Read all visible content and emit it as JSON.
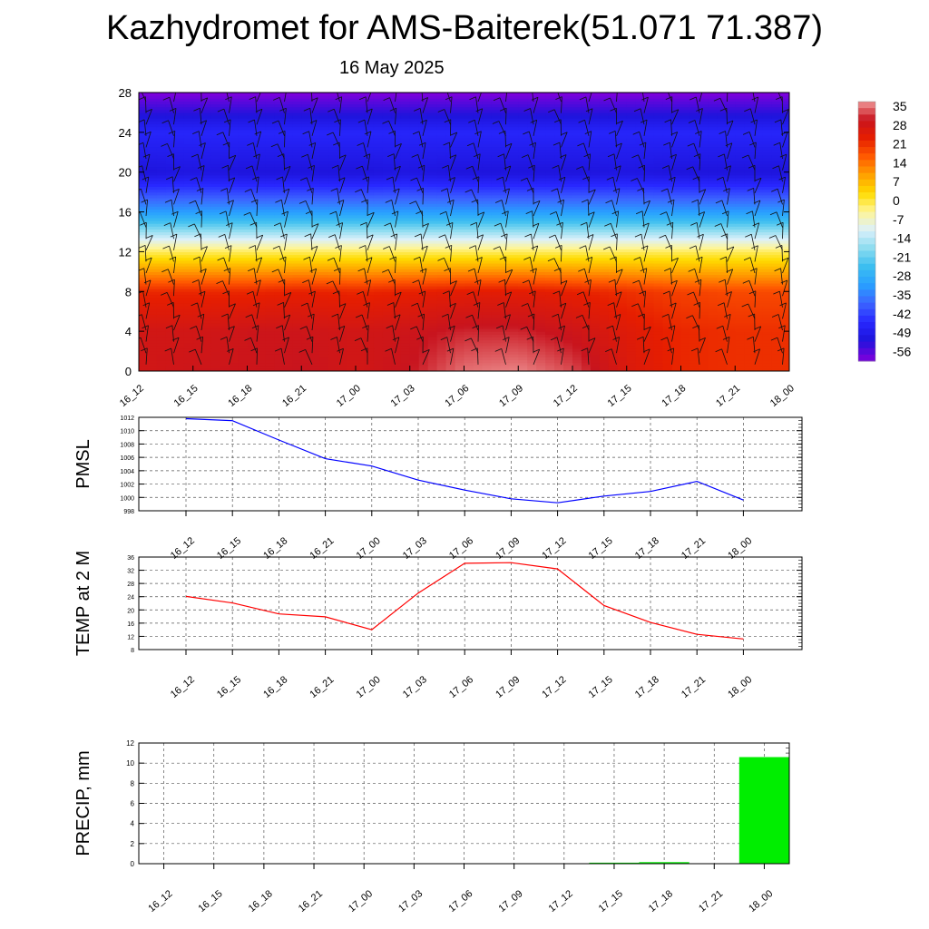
{
  "title": "Kazhydromet for AMS-Baiterek(51.071 71.387)",
  "subtitle": "16 May 2025",
  "time_labels": [
    "16_12",
    "16_15",
    "16_18",
    "16_21",
    "17_00",
    "17_03",
    "17_06",
    "17_09",
    "17_12",
    "17_15",
    "17_18",
    "17_21",
    "18_00"
  ],
  "chart_data": [
    {
      "type": "heatmap",
      "title": "",
      "ylabel": "",
      "ylim": [
        0,
        28
      ],
      "y_ticks": [
        0,
        4,
        8,
        12,
        16,
        20,
        24,
        28
      ],
      "x": [
        "16_12",
        "16_15",
        "16_18",
        "16_21",
        "17_00",
        "17_03",
        "17_06",
        "17_09",
        "17_12",
        "17_15",
        "17_18",
        "17_21",
        "18_00"
      ],
      "levels": [
        0,
        4,
        8,
        12,
        16,
        20,
        24,
        28
      ],
      "temperature_profile": [
        [
          26,
          27,
          27,
          28,
          26,
          28,
          33,
          34,
          31,
          24,
          20,
          19,
          19
        ],
        [
          26,
          26,
          27,
          27,
          26,
          27,
          29,
          29,
          27,
          23,
          20,
          19,
          19
        ],
        [
          20,
          20,
          20,
          21,
          20,
          21,
          22,
          22,
          21,
          19,
          17,
          16,
          16
        ],
        [
          -4,
          -4,
          -4,
          -4,
          -4,
          -4,
          -4,
          -4,
          -4,
          -4,
          -4,
          -4,
          -4
        ],
        [
          -35,
          -35,
          -35,
          -35,
          -35,
          -35,
          -35,
          -35,
          -35,
          -35,
          -35,
          -35,
          -35
        ],
        [
          -56,
          -55,
          -56,
          -56,
          -56,
          -55,
          -56,
          -56,
          -56,
          -55,
          -56,
          -56,
          -56
        ],
        [
          -50,
          -50,
          -50,
          -50,
          -50,
          -50,
          -50,
          -50,
          -50,
          -50,
          -50,
          -50,
          -50
        ],
        [
          -64,
          -64,
          -64,
          -64,
          -64,
          -64,
          -64,
          -64,
          -64,
          -64,
          -64,
          -64,
          -64
        ]
      ],
      "colorbar_labels": [
        "35",
        "28",
        "21",
        "14",
        "7",
        "0",
        "-7",
        "-14",
        "-21",
        "-28",
        "-35",
        "-42",
        "-49",
        "-56"
      ],
      "wind_barbs": true
    },
    {
      "type": "line",
      "ylabel": "PMSL",
      "ylim": [
        998,
        1012
      ],
      "y_ticks": [
        998,
        1000,
        1002,
        1004,
        1006,
        1008,
        1010,
        1012
      ],
      "x": [
        "16_12",
        "16_15",
        "16_18",
        "16_21",
        "17_00",
        "17_03",
        "17_06",
        "17_09",
        "17_12",
        "17_15",
        "17_18",
        "17_21",
        "18_00"
      ],
      "series": [
        {
          "color": "#0000ff",
          "values": [
            1011.8,
            1011.5,
            1008.6,
            1005.8,
            1004.7,
            1002.6,
            1001.1,
            999.8,
            999.2,
            1000.2,
            1000.9,
            1002.4,
            999.6
          ]
        }
      ],
      "grid": true
    },
    {
      "type": "line",
      "ylabel": "TEMP at 2 M",
      "ylim": [
        8,
        36
      ],
      "y_ticks": [
        8,
        12,
        16,
        20,
        24,
        28,
        32,
        36
      ],
      "x": [
        "16_12",
        "16_15",
        "16_18",
        "16_21",
        "17_00",
        "17_03",
        "17_06",
        "17_09",
        "17_12",
        "17_15",
        "17_18",
        "17_21",
        "18_00"
      ],
      "series": [
        {
          "color": "#ff0000",
          "values": [
            24.1,
            22.1,
            18.8,
            17.9,
            14.0,
            25.1,
            34.1,
            34.3,
            32.4,
            21.3,
            16.2,
            12.6,
            11.2
          ]
        }
      ],
      "grid": true
    },
    {
      "type": "bar",
      "ylabel": "PRECIP, mm",
      "ylim": [
        0,
        12
      ],
      "y_ticks": [
        0,
        2,
        4,
        6,
        8,
        10,
        12
      ],
      "categories": [
        "16_12",
        "16_15",
        "16_18",
        "16_21",
        "17_00",
        "17_03",
        "17_06",
        "17_09",
        "17_12",
        "17_15",
        "17_18",
        "17_21",
        "18_00"
      ],
      "values": [
        0,
        0,
        0,
        0,
        0,
        0,
        0,
        0,
        0,
        0.1,
        0.15,
        0,
        10.6
      ],
      "bar_color": "#00ee00",
      "grid": true
    }
  ]
}
